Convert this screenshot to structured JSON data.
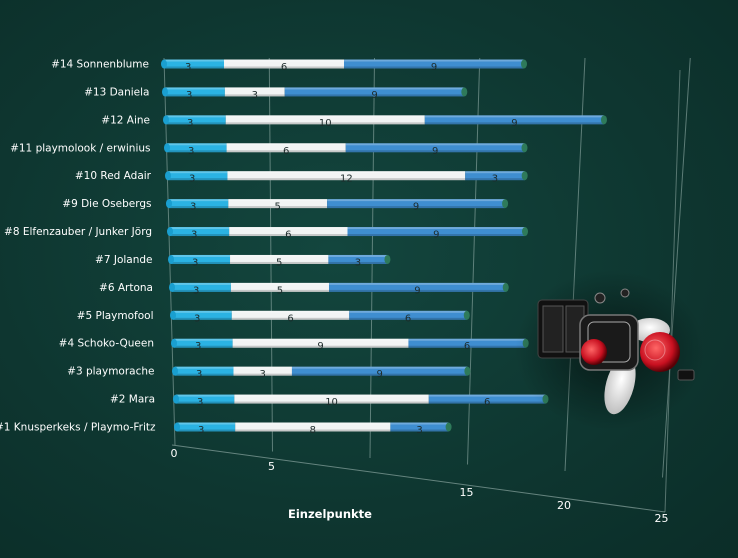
{
  "chart_data": {
    "type": "bar",
    "orientation": "horizontal",
    "stacked": true,
    "xlabel": "Einzelpunkte",
    "xlim": [
      0,
      25
    ],
    "x_ticks": [
      0,
      5,
      15,
      20,
      25
    ],
    "grid": true,
    "categories": [
      "#14 Sonnenblume",
      "#13 Daniela",
      "#12 Aine",
      "#11 playmolook / erwinius",
      "#10 Red Adair",
      "#9 Die Osebergs",
      "#8 Elfenzauber / Junker Jörg",
      "#7 Jolande",
      "#6 Artona",
      "#5 Playmofool",
      "#4 Schoko-Queen",
      "#3 playmorache",
      "#2 Mara",
      "#1 Knusperkeks / Playmo-Fritz"
    ],
    "series": [
      {
        "color": "#2bb3e3",
        "values": [
          3,
          3,
          3,
          3,
          3,
          3,
          3,
          3,
          3,
          3,
          3,
          3,
          3,
          3
        ]
      },
      {
        "color": "#f2f4f4",
        "values": [
          6,
          3,
          10,
          6,
          12,
          5,
          6,
          5,
          5,
          6,
          9,
          3,
          10,
          8
        ]
      },
      {
        "color": "#3f8ed0",
        "values": [
          9,
          9,
          9,
          9,
          3,
          9,
          9,
          3,
          9,
          6,
          6,
          9,
          6,
          3
        ]
      }
    ]
  },
  "decoration": {
    "figure_image": "playmobil-figure-fly-costume"
  }
}
